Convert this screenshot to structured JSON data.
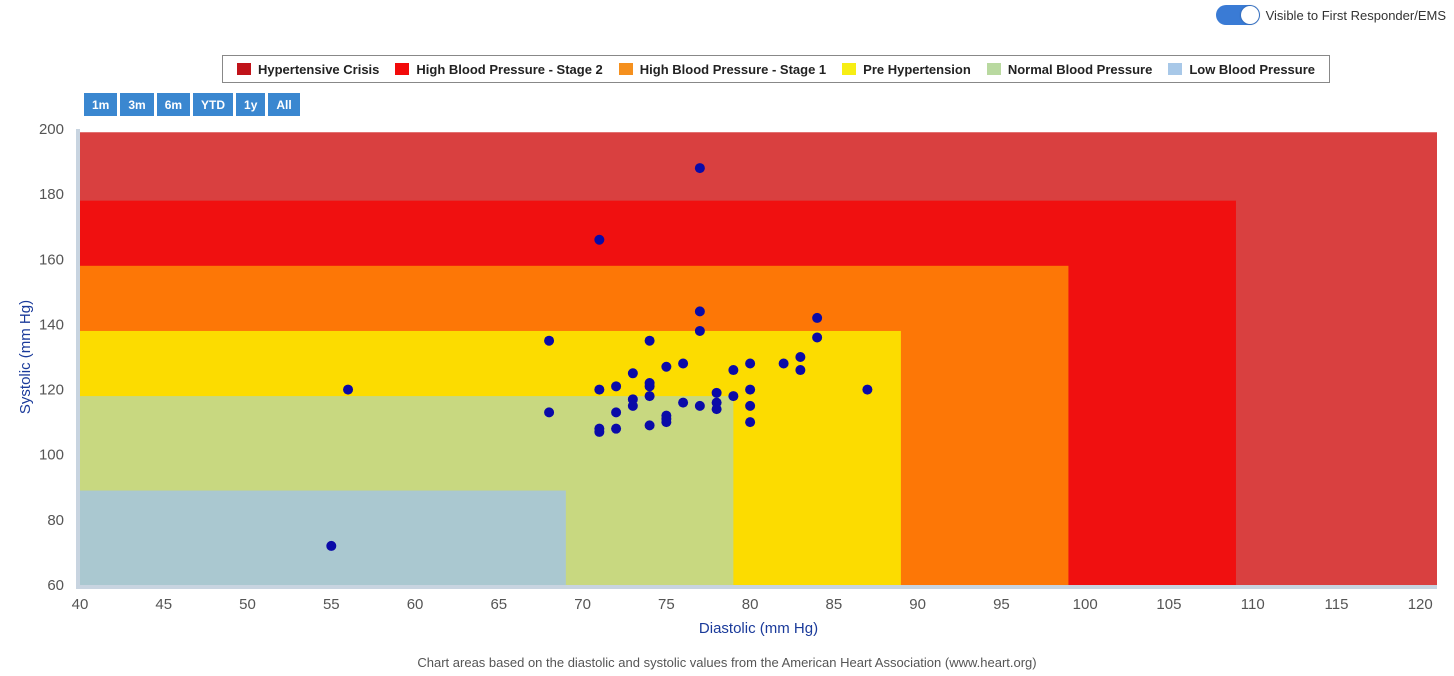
{
  "toggle": {
    "label": "Visible to First Responder/EMS",
    "on": true
  },
  "legend": [
    {
      "label": "Hypertensive Crisis",
      "color": "#c0131a"
    },
    {
      "label": "High Blood Pressure - Stage 2",
      "color": "#f20a0a"
    },
    {
      "label": "High Blood Pressure - Stage 1",
      "color": "#f5901e"
    },
    {
      "label": "Pre Hypertension",
      "color": "#f7ee14"
    },
    {
      "label": "Normal Blood Pressure",
      "color": "#b9d9a0"
    },
    {
      "label": "Low Blood Pressure",
      "color": "#a8c8e8"
    }
  ],
  "range_buttons": [
    "1m",
    "3m",
    "6m",
    "YTD",
    "1y",
    "All"
  ],
  "footnote": "Chart areas based on the diastolic and systolic values from the American Heart Association (www.heart.org)",
  "chart_data": {
    "type": "scatter",
    "xlabel": "Diastolic (mm Hg)",
    "ylabel": "Systolic (mm Hg)",
    "xlim": [
      40,
      121
    ],
    "ylim": [
      60,
      200
    ],
    "xticks": [
      40,
      45,
      50,
      55,
      60,
      65,
      70,
      75,
      80,
      85,
      90,
      95,
      100,
      105,
      110,
      115,
      120
    ],
    "yticks": [
      60,
      80,
      100,
      120,
      140,
      160,
      180,
      200
    ],
    "point_color": "#0a0aa8",
    "bands": [
      {
        "name": "Hypertensive Crisis",
        "xmax": 121,
        "ymax": 199,
        "color": "#d94040"
      },
      {
        "name": "High Blood Pressure - Stage 2",
        "xmax": 109,
        "ymax": 178,
        "color": "#f01010"
      },
      {
        "name": "High Blood Pressure - Stage 1",
        "xmax": 99,
        "ymax": 158,
        "color": "#fd7706"
      },
      {
        "name": "Pre Hypertension",
        "xmax": 89,
        "ymax": 138,
        "color": "#fcdc00"
      },
      {
        "name": "Normal Blood Pressure",
        "xmax": 79,
        "ymax": 118,
        "color": "#c8d880"
      },
      {
        "name": "Low Blood Pressure",
        "xmax": 69,
        "ymax": 89,
        "color": "#aac8d0"
      }
    ],
    "series": [
      {
        "name": "Readings",
        "points": [
          [
            55,
            72
          ],
          [
            56,
            120
          ],
          [
            68,
            135
          ],
          [
            68,
            113
          ],
          [
            71,
            166
          ],
          [
            71,
            120
          ],
          [
            71,
            108
          ],
          [
            71,
            107
          ],
          [
            72,
            121
          ],
          [
            72,
            113
          ],
          [
            72,
            108
          ],
          [
            73,
            125
          ],
          [
            73,
            117
          ],
          [
            73,
            115
          ],
          [
            74,
            135
          ],
          [
            74,
            122
          ],
          [
            74,
            121
          ],
          [
            74,
            118
          ],
          [
            74,
            109
          ],
          [
            75,
            127
          ],
          [
            75,
            112
          ],
          [
            75,
            111
          ],
          [
            75,
            110
          ],
          [
            76,
            128
          ],
          [
            76,
            116
          ],
          [
            77,
            188
          ],
          [
            77,
            144
          ],
          [
            77,
            138
          ],
          [
            77,
            115
          ],
          [
            78,
            119
          ],
          [
            78,
            116
          ],
          [
            78,
            114
          ],
          [
            79,
            126
          ],
          [
            79,
            118
          ],
          [
            80,
            128
          ],
          [
            80,
            120
          ],
          [
            80,
            115
          ],
          [
            80,
            110
          ],
          [
            82,
            128
          ],
          [
            83,
            130
          ],
          [
            83,
            126
          ],
          [
            84,
            142
          ],
          [
            84,
            136
          ],
          [
            87,
            120
          ]
        ]
      }
    ]
  }
}
